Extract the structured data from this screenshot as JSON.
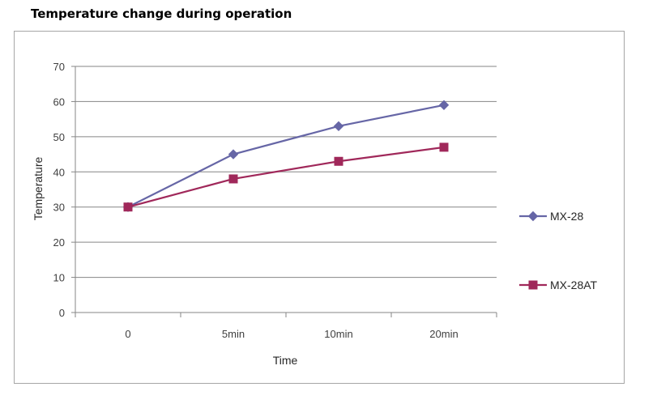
{
  "header": {
    "title": "Temperature change during operation"
  },
  "chart_data": {
    "type": "line",
    "title": "",
    "xlabel": "Time",
    "ylabel": "Temperature",
    "categories": [
      "0",
      "5min",
      "10min",
      "20min"
    ],
    "ylim": [
      0,
      70
    ],
    "yticks": [
      "0",
      "10",
      "20",
      "30",
      "40",
      "50",
      "60",
      "70"
    ],
    "grid": "horizontal",
    "legend_position": "right",
    "series": [
      {
        "name": "MX-28",
        "values": [
          30,
          45,
          53,
          59
        ],
        "color": "#6666a6",
        "marker": "diamond"
      },
      {
        "name": "MX-28AT",
        "values": [
          30,
          38,
          43,
          47
        ],
        "color": "#a0285a",
        "marker": "square"
      }
    ]
  }
}
